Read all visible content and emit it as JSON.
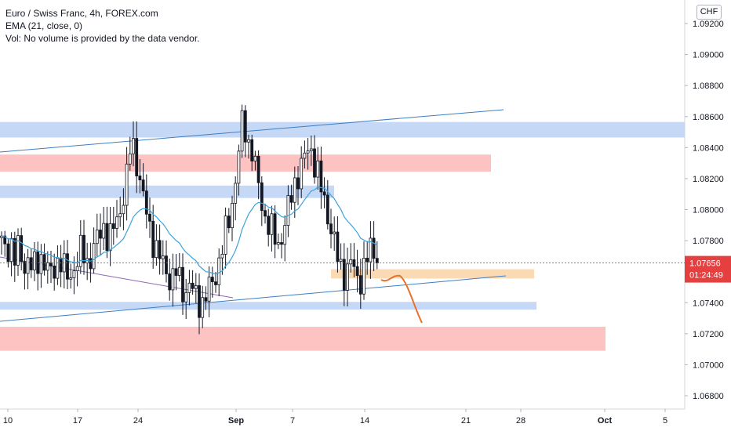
{
  "header": {
    "title": "Euro / Swiss Franc, 4h, FOREX.com",
    "indicator": "EMA (21, close, 0)",
    "volume_note": "Vol: No volume is provided by the data vendor."
  },
  "price_axis": {
    "currency_label": "CHF",
    "ticks": [
      "1.09200",
      "1.09000",
      "1.08800",
      "1.08600",
      "1.08400",
      "1.08200",
      "1.08000",
      "1.07800",
      "1.07600",
      "1.07400",
      "1.07200",
      "1.07000",
      "1.06800"
    ],
    "last_price": "1.07656",
    "countdown": "01:24:49"
  },
  "time_axis": {
    "ticks": [
      "10",
      "17",
      "24",
      "Sep",
      "7",
      "14",
      "21",
      "28",
      "Oct",
      "5"
    ]
  },
  "colors": {
    "up": "#26a69a",
    "down": "#ef5350",
    "candle": "#131722",
    "ema": "#3ba4dc",
    "trendline": "#2962ff",
    "blue_zone": "#bfd5f6",
    "red_zone": "#fdbcbc",
    "orange_zone": "#f9d5ad",
    "projection": "#e8712c",
    "price_label_bg": "#e53f3f"
  },
  "chart_data": {
    "type": "candlestick",
    "title": "Euro / Swiss Franc, 4h, FOREX.com",
    "ylim": [
      1.067,
      1.093
    ],
    "x_ticks": [
      "10",
      "17",
      "24",
      "Sep",
      "7",
      "14",
      "21",
      "28",
      "Oct",
      "5"
    ],
    "last_price": 1.07656,
    "ohlc_close_approx": [
      1.0778,
      1.0772,
      1.0781,
      1.0768,
      1.0775,
      1.0762,
      1.077,
      1.0759,
      1.0766,
      1.0771,
      1.0763,
      1.0757,
      1.0764,
      1.077,
      1.0761,
      1.0754,
      1.0762,
      1.0768,
      1.0774,
      1.0765,
      1.0771,
      1.0778,
      1.0784,
      1.079,
      1.078,
      1.0787,
      1.0795,
      1.0806,
      1.082,
      1.0845,
      1.0835,
      1.0818,
      1.0802,
      1.079,
      1.078,
      1.0771,
      1.0765,
      1.076,
      1.0754,
      1.076,
      1.0752,
      1.0747,
      1.0751,
      1.0746,
      1.0742,
      1.074,
      1.0746,
      1.0752,
      1.076,
      1.077,
      1.0783,
      1.0797,
      1.0812,
      1.0835,
      1.086,
      1.0845,
      1.0838,
      1.0822,
      1.0807,
      1.0795,
      1.0788,
      1.0782,
      1.0778,
      1.0786,
      1.0798,
      1.0812,
      1.0822,
      1.0826,
      1.0835,
      1.0843,
      1.083,
      1.0818,
      1.0808,
      1.0797,
      1.0783,
      1.077,
      1.0762,
      1.0758,
      1.0766,
      1.076,
      1.0754,
      1.0761,
      1.077,
      1.0778,
      1.07656
    ],
    "ema_period": 21,
    "zones": [
      {
        "kind": "blue",
        "price_top": 1.08565,
        "price_bottom": 1.08465
      },
      {
        "kind": "red",
        "price_top": 1.08355,
        "price_bottom": 1.08245
      },
      {
        "kind": "blue",
        "price_top": 1.08155,
        "price_bottom": 1.08075
      },
      {
        "kind": "orange",
        "price_top": 1.07616,
        "price_bottom": 1.07556
      },
      {
        "kind": "blue",
        "price_top": 1.07405,
        "price_bottom": 1.07355
      },
      {
        "kind": "red",
        "price_top": 1.07245,
        "price_bottom": 1.0709
      }
    ]
  }
}
